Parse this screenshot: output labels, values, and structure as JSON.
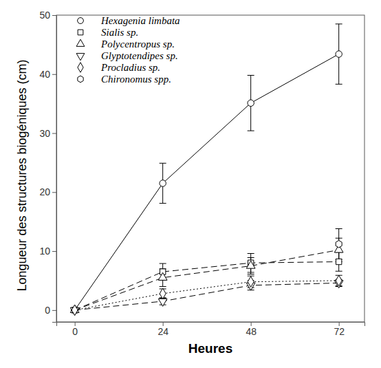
{
  "chart_data": {
    "type": "line",
    "x_label": "Heures",
    "y_label": "Longueur des structures biogéniques (cm)",
    "x": [
      0,
      24,
      48,
      72
    ],
    "xlim": [
      -5,
      79
    ],
    "xticks": [
      0,
      24,
      48,
      72
    ],
    "ylim": [
      -2,
      50
    ],
    "yticks": [
      0,
      10,
      20,
      30,
      40,
      50
    ],
    "legend": "top-left",
    "grid": false,
    "series": [
      {
        "name": "Hexagenia limbata",
        "color": "#000000",
        "marker": "circle",
        "line_style": "solid",
        "values": [
          0,
          21.5,
          35.1,
          43.4
        ],
        "errors": [
          0,
          3.4,
          4.7,
          5.1
        ]
      },
      {
        "name": "Sialis sp.",
        "color": "#000000",
        "marker": "square",
        "line_style": "dashed",
        "values": [
          0,
          6.5,
          8.0,
          8.2
        ],
        "errors": [
          0,
          1.4,
          1.6,
          1.6
        ]
      },
      {
        "name": "Polycentropus sp.",
        "color": "#000000",
        "marker": "triangle",
        "line_style": "dashed",
        "values": [
          0,
          5.5,
          7.5,
          10.2
        ],
        "errors": [
          0,
          1.5,
          1.4,
          2.0
        ]
      },
      {
        "name": "Glyptotendipes sp.",
        "color": "#000000",
        "marker": "triangle-down",
        "line_style": "dashed",
        "values": [
          0,
          1.5,
          4.2,
          4.6
        ],
        "errors": [
          0,
          0.6,
          0.8,
          0.6
        ]
      },
      {
        "name": "Procladius sp.",
        "color": "#000000",
        "marker": "diamond",
        "line_style": "dotted",
        "values": [
          0,
          2.8,
          4.8,
          5.0
        ],
        "errors": [
          0,
          0.8,
          1.0,
          0.9
        ]
      },
      {
        "name": "Chironomus spp.",
        "color": "#000000",
        "marker": "hexagon",
        "line_style": "none",
        "values": [
          null,
          null,
          null,
          11.2
        ],
        "errors": [
          null,
          null,
          null,
          2.6
        ]
      }
    ]
  }
}
